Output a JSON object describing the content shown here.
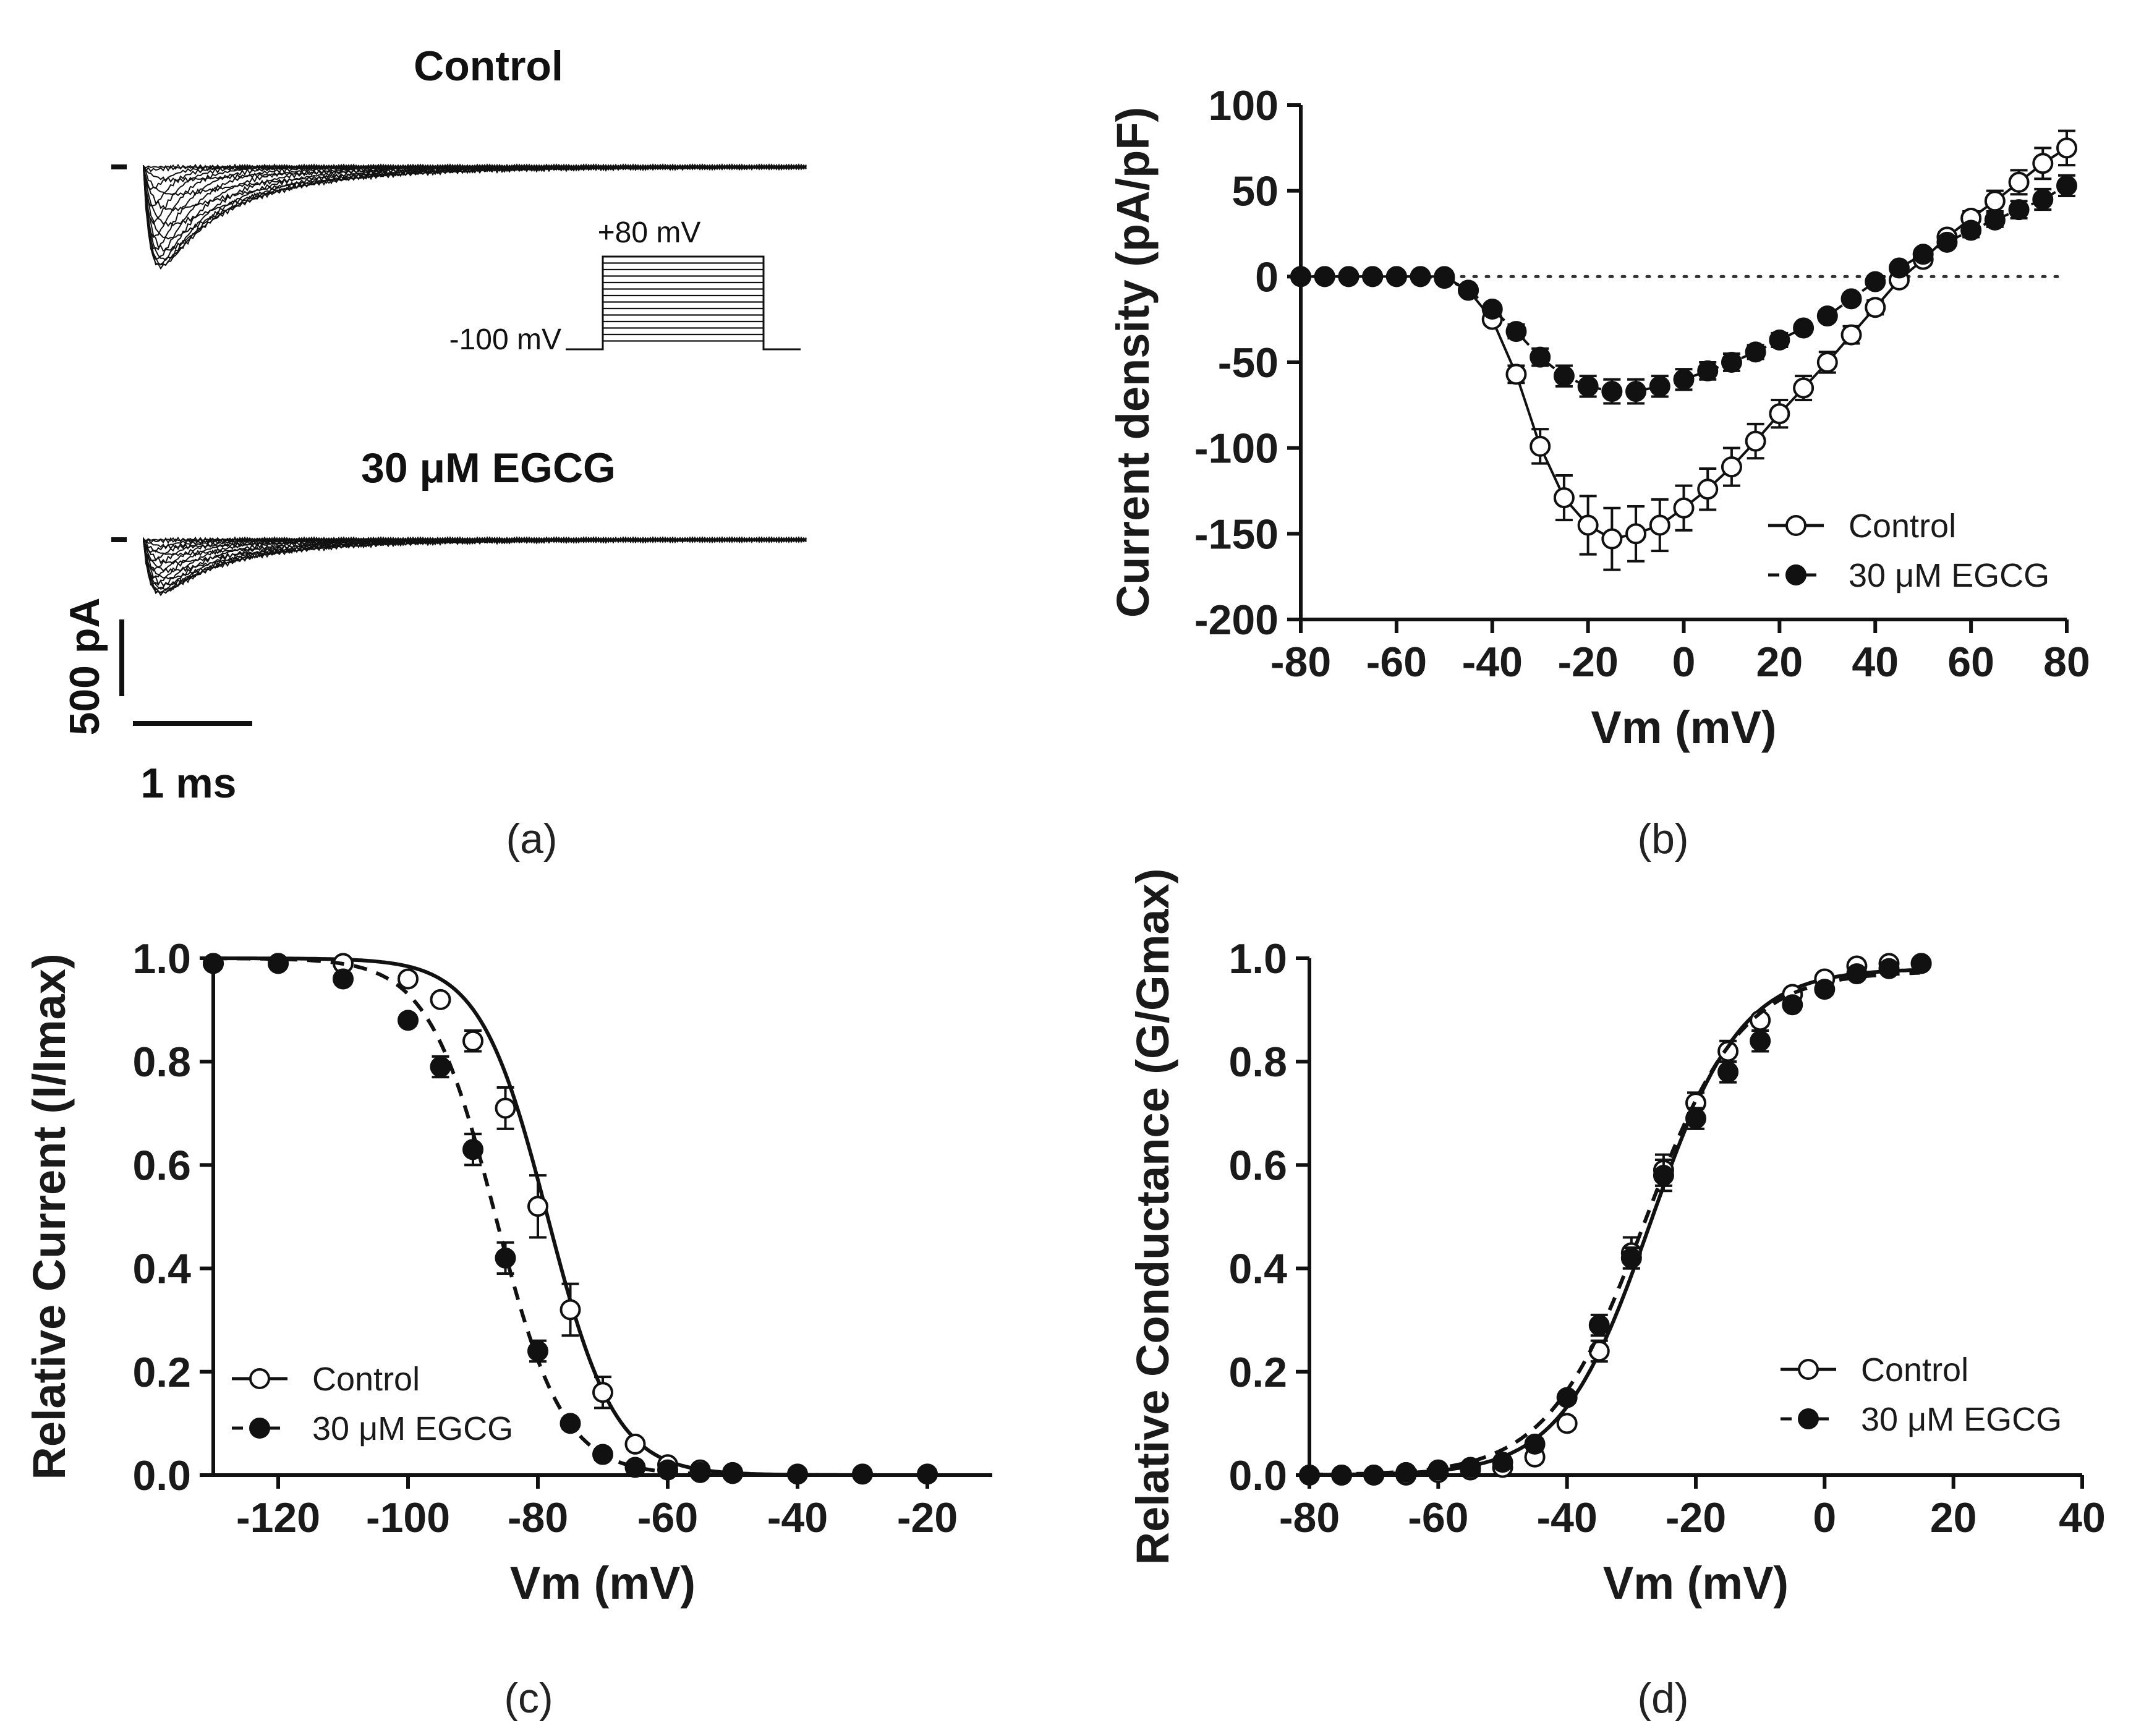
{
  "chart_data": [
    {
      "panel": "a",
      "type": "traces",
      "panel_label": "(a)",
      "titles": [
        "Control",
        "30 μM EGCG"
      ],
      "protocol": {
        "hold_label": "-100 mV",
        "step_label": "+80 mV"
      },
      "scale_bars": {
        "current_label": "500 pA",
        "time_label": "1 ms"
      }
    },
    {
      "panel": "b",
      "type": "line",
      "panel_label": "(b)",
      "xlabel": "Vm (mV)",
      "ylabel": "Current density (pA/pF)",
      "xlim": [
        -80,
        80
      ],
      "ylim": [
        -200,
        100
      ],
      "xticks": [
        -80,
        -60,
        -40,
        -20,
        0,
        20,
        40,
        60,
        80
      ],
      "yticks": [
        100,
        50,
        0,
        -50,
        -100,
        -150,
        -200
      ],
      "zero_line": "dotted",
      "legend": "bottom-right",
      "series": [
        {
          "name": "Control",
          "marker": "open",
          "x": [
            -80,
            -75,
            -70,
            -65,
            -60,
            -55,
            -50,
            -45,
            -40,
            -35,
            -30,
            -25,
            -20,
            -15,
            -10,
            -5,
            0,
            5,
            10,
            15,
            20,
            25,
            30,
            35,
            40,
            45,
            50,
            55,
            60,
            65,
            70,
            75,
            80
          ],
          "y": [
            0,
            0,
            0,
            0,
            0,
            0,
            0,
            -8,
            -25,
            -57,
            -99,
            -129,
            -145,
            -153,
            -150,
            -145,
            -135,
            -124,
            -111,
            -96,
            -80,
            -65,
            -50,
            -34,
            -18,
            -2,
            10,
            23,
            34,
            44,
            55,
            66,
            75
          ],
          "err": [
            0,
            0,
            0,
            0,
            0,
            0,
            0,
            2,
            3,
            5,
            10,
            13,
            17,
            18,
            16,
            15,
            13,
            12,
            11,
            10,
            8,
            7,
            6,
            5,
            4,
            3,
            3,
            3,
            4,
            6,
            7,
            9,
            10
          ]
        },
        {
          "name": "30 μM EGCG",
          "marker": "filled",
          "x": [
            -80,
            -75,
            -70,
            -65,
            -60,
            -55,
            -50,
            -45,
            -40,
            -35,
            -30,
            -25,
            -20,
            -15,
            -10,
            -5,
            0,
            5,
            10,
            15,
            20,
            25,
            30,
            35,
            40,
            45,
            50,
            55,
            60,
            65,
            70,
            75,
            80
          ],
          "y": [
            0,
            0,
            0,
            0,
            0,
            0,
            -1,
            -8,
            -19,
            -32,
            -47,
            -58,
            -64,
            -67,
            -67,
            -64,
            -60,
            -55,
            -50,
            -44,
            -37,
            -30,
            -23,
            -13,
            -3,
            5,
            13,
            20,
            27,
            33,
            39,
            45,
            53
          ],
          "err": [
            0,
            0,
            0,
            0,
            0,
            0,
            1,
            2,
            3,
            4,
            5,
            6,
            6,
            7,
            7,
            6,
            6,
            5,
            5,
            4,
            4,
            3,
            3,
            3,
            2,
            2,
            3,
            3,
            4,
            4,
            5,
            6,
            6
          ]
        }
      ]
    },
    {
      "panel": "c",
      "type": "line",
      "panel_label": "(c)",
      "xlabel": "Vm (mV)",
      "ylabel": "Relative Current (I/Imax)",
      "xlim": [
        -130,
        -10
      ],
      "ylim": [
        0,
        1.0
      ],
      "xticks": [
        -120,
        -100,
        -80,
        -60,
        -40,
        -20
      ],
      "yticks": [
        "1.0",
        "0.8",
        "0.6",
        "0.4",
        "0.2",
        "0.0"
      ],
      "legend": "bottom-left",
      "series": [
        {
          "name": "Control",
          "marker": "open",
          "fit": {
            "v_half": -78.5,
            "k": 5.2
          },
          "x": [
            -130,
            -120,
            -110,
            -100,
            -95,
            -90,
            -85,
            -80,
            -75,
            -70,
            -65,
            -60,
            -55,
            -50
          ],
          "y": [
            0.99,
            0.99,
            0.99,
            0.96,
            0.92,
            0.84,
            0.71,
            0.52,
            0.32,
            0.16,
            0.06,
            0.02,
            0.01,
            0.005
          ],
          "err": [
            0,
            0,
            0,
            0.01,
            0.01,
            0.02,
            0.04,
            0.06,
            0.05,
            0.03,
            0.01,
            0.01,
            0,
            0
          ]
        },
        {
          "name": "30 μM EGCG",
          "marker": "filled",
          "fit": {
            "v_half": -86.5,
            "k": 5.2
          },
          "x": [
            -130,
            -120,
            -110,
            -100,
            -95,
            -90,
            -85,
            -80,
            -75,
            -70,
            -65,
            -60,
            -55,
            -50,
            -40,
            -30,
            -20
          ],
          "y": [
            0.99,
            0.99,
            0.96,
            0.88,
            0.79,
            0.63,
            0.42,
            0.24,
            0.1,
            0.04,
            0.015,
            0.01,
            0.005,
            0.003,
            0.002,
            0.002,
            0.002
          ],
          "err": [
            0,
            0,
            0.01,
            0.01,
            0.02,
            0.03,
            0.03,
            0.02,
            0.01,
            0.01,
            0,
            0,
            0,
            0,
            0,
            0,
            0
          ]
        }
      ]
    },
    {
      "panel": "d",
      "type": "line",
      "panel_label": "(d)",
      "xlabel": "Vm (mV)",
      "ylabel": "Relative Conductance (G/Gmax)",
      "xlim": [
        -80,
        40
      ],
      "ylim": [
        0,
        1.0
      ],
      "xticks": [
        -80,
        -60,
        -40,
        -20,
        0,
        20,
        40
      ],
      "yticks": [
        "1.0",
        "0.8",
        "0.6",
        "0.4",
        "0.2",
        "0.0"
      ],
      "legend": "bottom-right",
      "series": [
        {
          "name": "Control",
          "marker": "open",
          "fit": {
            "v_half": -27.0,
            "k": 7.0,
            "gmax": 0.98
          },
          "x": [
            -80,
            -75,
            -70,
            -65,
            -60,
            -55,
            -50,
            -45,
            -40,
            -35,
            -30,
            -25,
            -20,
            -15,
            -10,
            -5,
            0,
            5,
            10,
            15
          ],
          "y": [
            0,
            0,
            0,
            0,
            0.005,
            0.01,
            0.015,
            0.035,
            0.1,
            0.24,
            0.43,
            0.59,
            0.72,
            0.82,
            0.88,
            0.93,
            0.96,
            0.985,
            0.99,
            0.99
          ],
          "err": [
            0,
            0,
            0,
            0,
            0,
            0,
            0.005,
            0.01,
            0.01,
            0.02,
            0.03,
            0.03,
            0.02,
            0.02,
            0.01,
            0.01,
            0.01,
            0.01,
            0,
            0
          ]
        },
        {
          "name": "30 μM EGCG",
          "marker": "filled",
          "fit": {
            "v_half": -28.0,
            "k": 7.5,
            "gmax": 0.975
          },
          "x": [
            -80,
            -75,
            -70,
            -65,
            -60,
            -55,
            -50,
            -45,
            -40,
            -35,
            -30,
            -25,
            -20,
            -15,
            -10,
            -5,
            0,
            5,
            10,
            15
          ],
          "y": [
            0,
            0,
            0,
            0.005,
            0.01,
            0.015,
            0.025,
            0.06,
            0.15,
            0.29,
            0.42,
            0.58,
            0.69,
            0.78,
            0.84,
            0.91,
            0.94,
            0.97,
            0.98,
            0.99
          ],
          "err": [
            0,
            0,
            0,
            0,
            0,
            0,
            0.005,
            0.01,
            0.01,
            0.02,
            0.02,
            0.03,
            0.02,
            0.02,
            0.02,
            0.01,
            0.01,
            0.01,
            0,
            0
          ]
        }
      ]
    }
  ]
}
